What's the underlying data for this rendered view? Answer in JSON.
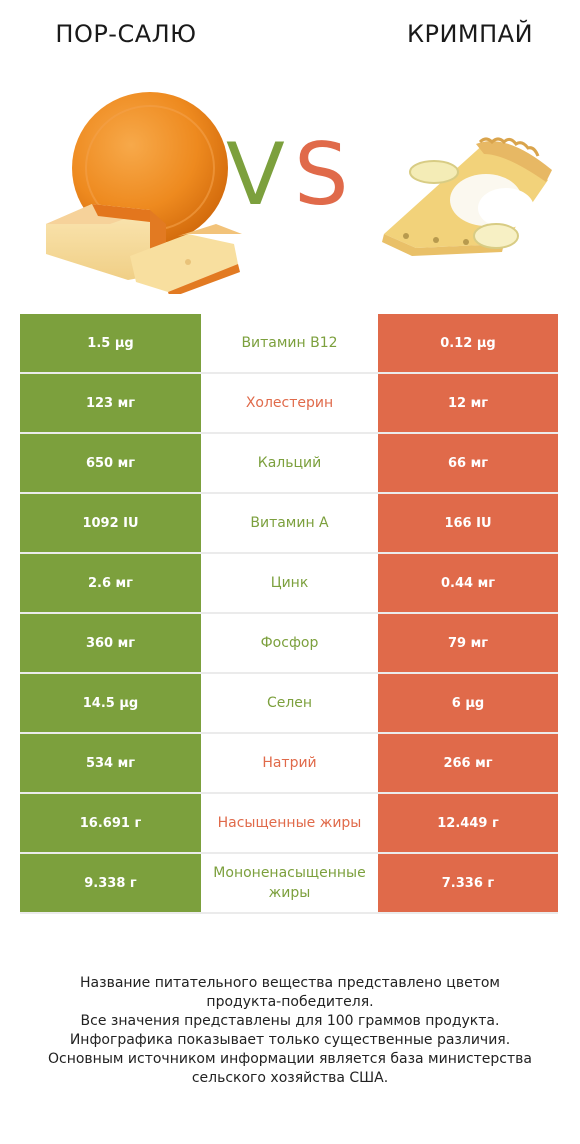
{
  "header": {
    "left_name": "ПОР-САЛЮ",
    "right_name": "КРИМПАЙ",
    "vs_v": "V",
    "vs_s": "S"
  },
  "colors": {
    "winner_left": "#7ca03d",
    "winner_right": "#e06a4a"
  },
  "images": {
    "left": "port-salut-cheese-wheel-with-slices",
    "right": "banana-cream-pie-slice"
  },
  "rows": [
    {
      "left": "1.5 µg",
      "nutrient": "Витамин B12",
      "right": "0.12 µg",
      "winner": "left"
    },
    {
      "left": "123 мг",
      "nutrient": "Холестерин",
      "right": "12 мг",
      "winner": "right"
    },
    {
      "left": "650 мг",
      "nutrient": "Кальций",
      "right": "66 мг",
      "winner": "left"
    },
    {
      "left": "1092 IU",
      "nutrient": "Витамин A",
      "right": "166 IU",
      "winner": "left"
    },
    {
      "left": "2.6 мг",
      "nutrient": "Цинк",
      "right": "0.44 мг",
      "winner": "left"
    },
    {
      "left": "360 мг",
      "nutrient": "Фосфор",
      "right": "79 мг",
      "winner": "left"
    },
    {
      "left": "14.5 µg",
      "nutrient": "Селен",
      "right": "6 µg",
      "winner": "left"
    },
    {
      "left": "534 мг",
      "nutrient": "Натрий",
      "right": "266 мг",
      "winner": "right"
    },
    {
      "left": "16.691 г",
      "nutrient": "Насыщенные жиры",
      "right": "12.449 г",
      "winner": "right"
    },
    {
      "left": "9.338 г",
      "nutrient": "Мононенасыщенные жиры",
      "right": "7.336 г",
      "winner": "left"
    }
  ],
  "footnote": [
    "Название питательного вещества представлено цветом",
    "продукта-победителя.",
    "Все значения представлены для 100 граммов продукта.",
    "Инфографика показывает только существенные различия.",
    "Основным источником информации является база министерства",
    "сельского хозяйства США."
  ]
}
